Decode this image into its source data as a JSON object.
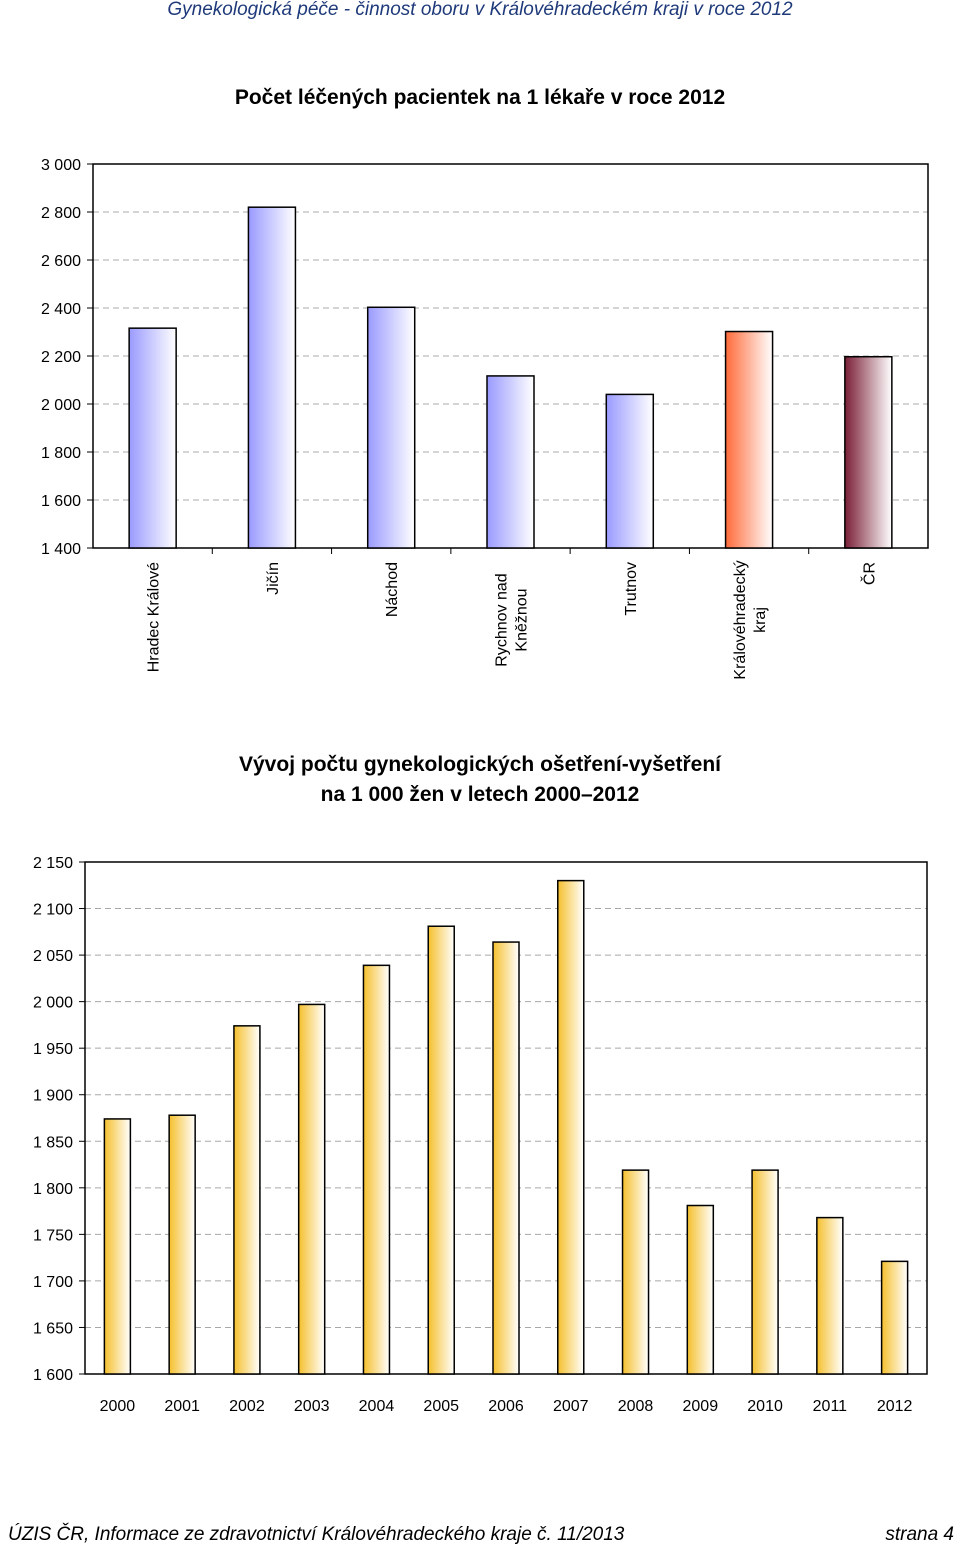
{
  "header": "Gynekologická péče - činnost oboru v Královéhradeckém kraji v roce 2012",
  "footer": {
    "left": "ÚZIS ČR, Informace ze zdravotnictví Královéhradeckého kraje č. 11/2013",
    "right": "strana 4"
  },
  "chart_data": [
    {
      "type": "bar",
      "title": "Počet léčených pacientek na 1 lékaře v roce 2012",
      "categories": [
        [
          "Hradec Králové"
        ],
        [
          "Jičín"
        ],
        [
          "Náchod"
        ],
        [
          "Rychnov nad",
          "Kněžnou"
        ],
        [
          "Trutnov"
        ],
        [
          "Královéhradecký",
          "kraj"
        ],
        [
          "ČR"
        ]
      ],
      "values": [
        2316,
        2820,
        2403,
        2117,
        2040,
        2302,
        2197
      ],
      "ylim": [
        1400,
        3000
      ],
      "yticks": [
        1400,
        1600,
        1800,
        2000,
        2200,
        2400,
        2600,
        2800,
        3000
      ],
      "yticklabels": [
        "1 400",
        "1 600",
        "1 800",
        "2 000",
        "2 200",
        "2 400",
        "2 600",
        "2 800",
        "3 000"
      ],
      "grid": true,
      "colors": [
        "#9a9aff",
        "#9a9aff",
        "#9a9aff",
        "#9a9aff",
        "#9a9aff",
        "#ff6a3a",
        "#7a1e36"
      ]
    },
    {
      "type": "bar",
      "title": [
        "Vývoj počtu gynekologických ošetření-vyšetření",
        "na 1 000 žen v letech 2000–2012"
      ],
      "categories": [
        "2000",
        "2001",
        "2002",
        "2003",
        "2004",
        "2005",
        "2006",
        "2007",
        "2008",
        "2009",
        "2010",
        "2011",
        "2012"
      ],
      "values": [
        1874,
        1878,
        1974,
        1997,
        2039,
        2081,
        2064,
        2130,
        1819,
        1781,
        1819,
        1768,
        1721
      ],
      "ylim": [
        1600,
        2150
      ],
      "yticks": [
        1600,
        1650,
        1700,
        1750,
        1800,
        1850,
        1900,
        1950,
        2000,
        2050,
        2100,
        2150
      ],
      "yticklabels": [
        "1 600",
        "1 650",
        "1 700",
        "1 750",
        "1 800",
        "1 850",
        "1 900",
        "1 950",
        "2 000",
        "2 050",
        "2 100",
        "2 150"
      ],
      "grid": true,
      "colors": [
        "#f5c02e"
      ]
    }
  ]
}
